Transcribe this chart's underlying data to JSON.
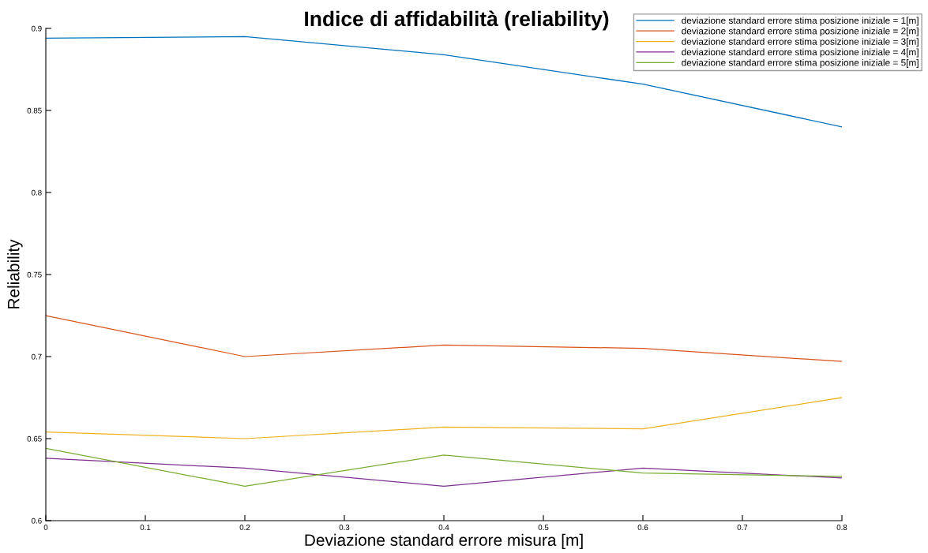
{
  "chart_data": {
    "type": "line",
    "title": "Indice di affidabilità (reliability)",
    "xlabel": "Deviazione standard errore misura [m]",
    "ylabel": "Reliability",
    "x": [
      0,
      0.2,
      0.4,
      0.6,
      0.8
    ],
    "series": [
      {
        "name": "deviazione standard errore stima posizione iniziale = 1[m]",
        "color": "#0072bd",
        "values": [
          0.894,
          0.895,
          0.884,
          0.866,
          0.84
        ]
      },
      {
        "name": "deviazione standard errore stima posizione iniziale = 2[m]",
        "color": "#d95319",
        "values": [
          0.725,
          0.7,
          0.707,
          0.705,
          0.697
        ]
      },
      {
        "name": "deviazione standard errore stima posizione iniziale = 3[m]",
        "color": "#edb120",
        "values": [
          0.654,
          0.65,
          0.657,
          0.656,
          0.675
        ]
      },
      {
        "name": "deviazione standard errore stima posizione iniziale = 4[m]",
        "color": "#7e2f8e",
        "values": [
          0.638,
          0.632,
          0.621,
          0.632,
          0.626
        ]
      },
      {
        "name": "deviazione standard errore stima posizione iniziale = 5[m]",
        "color": "#77ac30",
        "values": [
          0.644,
          0.621,
          0.64,
          0.629,
          0.627
        ]
      }
    ],
    "xlim": [
      0,
      0.8
    ],
    "xticks": [
      0,
      0.1,
      0.2,
      0.3,
      0.4,
      0.5,
      0.6,
      0.7,
      0.8
    ],
    "ylim": [
      0.6,
      0.9
    ],
    "yticks": [
      0.6,
      0.65,
      0.7,
      0.75,
      0.8,
      0.85,
      0.9
    ],
    "grid": false,
    "legend": "top right",
    "marker": "none",
    "line_style": "solid"
  }
}
